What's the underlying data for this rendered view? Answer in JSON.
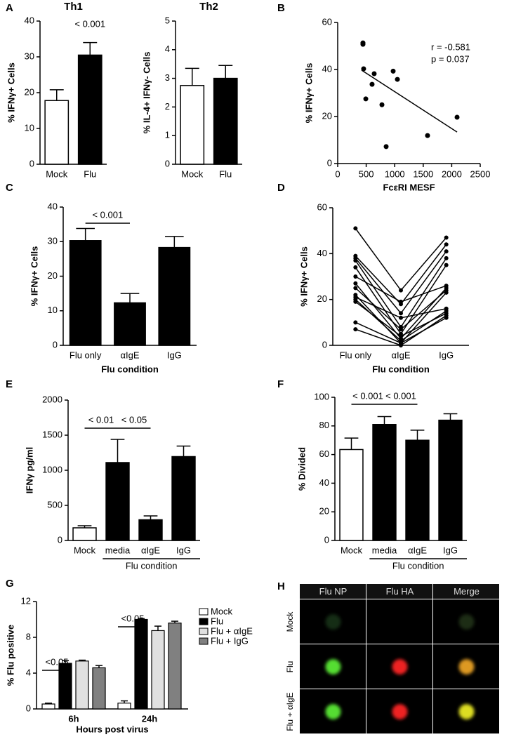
{
  "chart_data": [
    {
      "type": "bar",
      "panel": "A",
      "title": "Th1",
      "ylabel": "% IFNγ+ Cells",
      "categories": [
        "Mock",
        "Flu"
      ],
      "values": [
        17.8,
        30.5
      ],
      "errors": [
        3,
        3.5
      ],
      "colors": [
        "#ffffff",
        "#000000"
      ],
      "ylim": [
        0,
        40
      ],
      "yticks": [
        0,
        10,
        20,
        30,
        40
      ],
      "annotations": [
        "< 0.001"
      ]
    },
    {
      "type": "bar",
      "title": "Th2",
      "ylabel": "% IL-4+ IFNγ- Cells",
      "categories": [
        "Mock",
        "Flu"
      ],
      "values": [
        2.75,
        3.0
      ],
      "errors": [
        0.6,
        0.45
      ],
      "colors": [
        "#ffffff",
        "#000000"
      ],
      "ylim": [
        0,
        5
      ],
      "yticks": [
        0,
        1,
        2,
        3,
        4,
        5
      ]
    },
    {
      "type": "scatter",
      "panel": "B",
      "xlabel": "FcεRI MESF",
      "ylabel": "% IFNγ+ Cells",
      "x": [
        443,
        443,
        455,
        493,
        603,
        640,
        776,
        850,
        973,
        1047,
        1576,
        2094
      ],
      "y": [
        51.3,
        50.7,
        40.3,
        27.5,
        33.7,
        38.2,
        25,
        7.2,
        39.3,
        35.8,
        11.9,
        19.7
      ],
      "fit_line": {
        "x": [
          419,
          2094
        ],
        "y": [
          39.7,
          13.4
        ]
      },
      "color": "#000000",
      "xlim": [
        0,
        2500
      ],
      "xticks": [
        0,
        500,
        1000,
        1500,
        2000,
        2500
      ],
      "ylim": [
        0,
        60
      ],
      "yticks": [
        0,
        20,
        40,
        60
      ],
      "annotations": [
        "r = -0.581",
        "p = 0.037"
      ]
    },
    {
      "type": "bar",
      "panel": "C",
      "xlabel": "Flu condition",
      "ylabel": "% IFNγ+ Cells",
      "categories": [
        "Flu only",
        "αIgE",
        "IgG"
      ],
      "values": [
        30.3,
        12.3,
        28.3
      ],
      "errors": [
        3.5,
        2.7,
        3.2
      ],
      "colors": [
        "#000000",
        "#000000",
        "#000000"
      ],
      "ylim": [
        0,
        40
      ],
      "yticks": [
        0,
        10,
        20,
        30,
        40
      ],
      "annotations": [
        "< 0.001"
      ]
    },
    {
      "type": "line",
      "panel": "D",
      "xlabel": "Flu condition",
      "ylabel": "% IFNγ+ Cells",
      "categories": [
        "Flu only",
        "αIgE",
        "IgG"
      ],
      "color": "#000000",
      "series": [
        {
          "values": [
            51,
            24,
            47
          ]
        },
        {
          "values": [
            39,
            18,
            44
          ]
        },
        {
          "values": [
            38,
            14,
            41
          ]
        },
        {
          "values": [
            37,
            8,
            38
          ]
        },
        {
          "values": [
            34,
            5,
            35
          ]
        },
        {
          "values": [
            30,
            19,
            26
          ]
        },
        {
          "values": [
            27,
            3,
            25
          ]
        },
        {
          "values": [
            25,
            7,
            24
          ]
        },
        {
          "values": [
            22,
            1,
            23
          ]
        },
        {
          "values": [
            21,
            12,
            16
          ]
        },
        {
          "values": [
            20,
            2,
            15
          ]
        },
        {
          "values": [
            19,
            4,
            14
          ]
        },
        {
          "values": [
            10,
            1,
            12
          ]
        },
        {
          "values": [
            7,
            0,
            13
          ]
        }
      ],
      "ylim": [
        0,
        60
      ],
      "yticks": [
        0,
        20,
        40,
        60
      ]
    },
    {
      "type": "bar",
      "panel": "E",
      "xlabel": "Flu condition",
      "ylabel": "IFNγ pg/ml",
      "categories": [
        "Mock",
        "media",
        "αIgE",
        "IgG"
      ],
      "values": [
        180,
        1110,
        295,
        1195
      ],
      "errors": [
        30,
        330,
        55,
        150
      ],
      "colors": [
        "#ffffff",
        "#000000",
        "#000000",
        "#000000"
      ],
      "ylim": [
        0,
        2000
      ],
      "yticks": [
        0,
        500,
        1000,
        1500,
        2000
      ],
      "annotations": [
        "< 0.01",
        "< 0.05"
      ]
    },
    {
      "type": "bar",
      "panel": "F",
      "xlabel": "Flu condition",
      "ylabel": "% Divided",
      "categories": [
        "Mock",
        "media",
        "αIgE",
        "IgG"
      ],
      "values": [
        63.5,
        81,
        70,
        84
      ],
      "errors": [
        8,
        5.5,
        7,
        4.5
      ],
      "colors": [
        "#ffffff",
        "#000000",
        "#000000",
        "#000000"
      ],
      "ylim": [
        0,
        100
      ],
      "yticks": [
        0,
        20,
        40,
        60,
        80,
        100
      ],
      "annotations": [
        "< 0.001",
        "< 0.001"
      ]
    },
    {
      "type": "grouped_bar",
      "panel": "G",
      "xlabel": "Hours post virus",
      "ylabel": "% Flu positive",
      "categories": [
        "6h",
        "24h"
      ],
      "series": [
        {
          "name": "Mock",
          "color": "#ffffff",
          "values": [
            0.55,
            0.65
          ],
          "errors": [
            0.1,
            0.25
          ]
        },
        {
          "name": "Flu",
          "color": "#000000",
          "values": [
            5.1,
            10.0
          ],
          "errors": [
            0.3,
            0.1
          ]
        },
        {
          "name": "Flu + αIgE",
          "color": "#e0e0e0",
          "values": [
            5.35,
            8.75
          ],
          "errors": [
            0.1,
            0.5
          ]
        },
        {
          "name": "Flu + IgG",
          "color": "#808080",
          "values": [
            4.6,
            9.6
          ],
          "errors": [
            0.25,
            0.2
          ]
        }
      ],
      "ylim": [
        0,
        12
      ],
      "yticks": [
        0,
        4,
        8,
        12
      ],
      "annotations": [
        "<0.05",
        "<0.05"
      ]
    }
  ],
  "image_panel": {
    "panel": "H",
    "columns": [
      "Flu NP",
      "Flu HA",
      "Merge"
    ],
    "rows": [
      "Mock",
      "Flu",
      "Flu + αIgE"
    ]
  }
}
